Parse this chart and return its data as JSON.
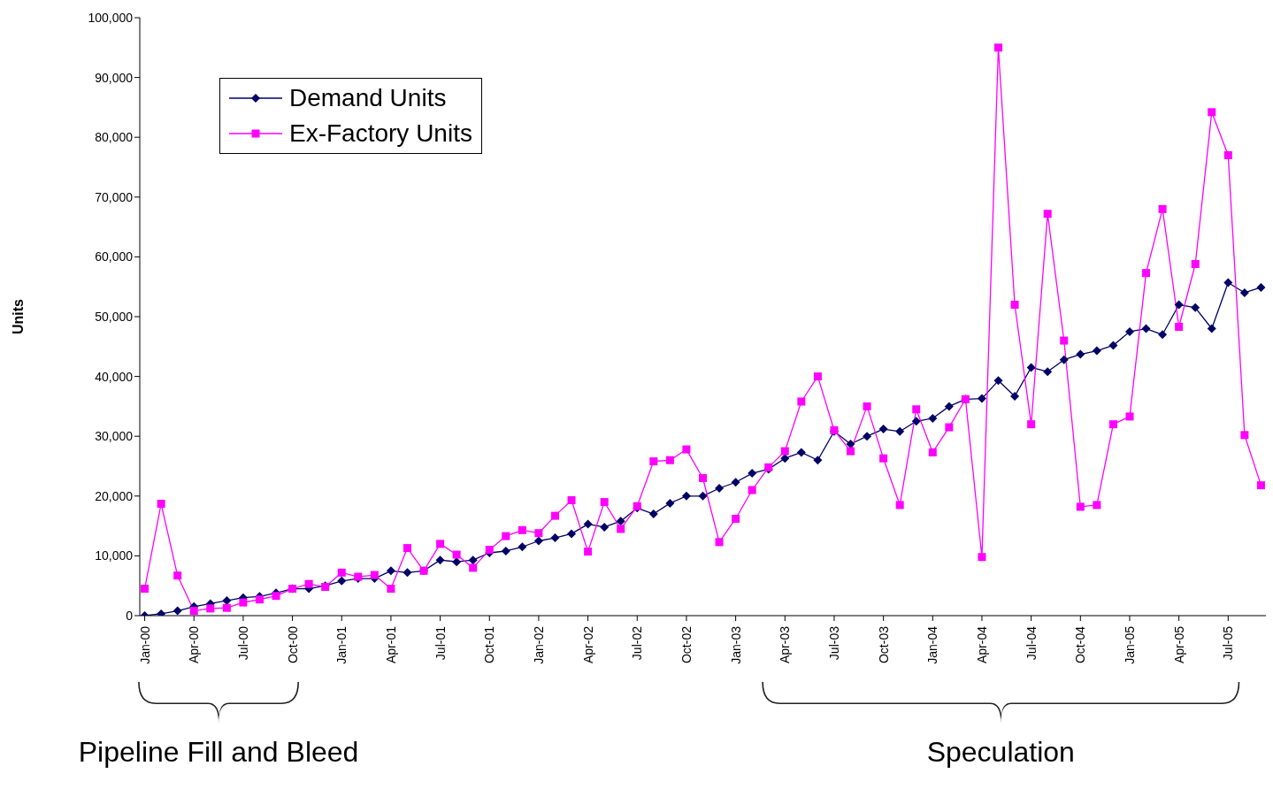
{
  "chart_data": {
    "type": "line",
    "ylabel": "Units",
    "categories": [
      "Jan-00",
      null,
      null,
      "Apr-00",
      null,
      null,
      "Jul-00",
      null,
      null,
      "Oct-00",
      null,
      null,
      "Jan-01",
      null,
      null,
      "Apr-01",
      null,
      null,
      "Jul-01",
      null,
      null,
      "Oct-01",
      null,
      null,
      "Jan-02",
      null,
      null,
      "Apr-02",
      null,
      null,
      "Jul-02",
      null,
      null,
      "Oct-02",
      null,
      null,
      "Jan-03",
      null,
      null,
      "Apr-03",
      null,
      null,
      "Jul-03",
      null,
      null,
      "Oct-03",
      null,
      null,
      "Jan-04",
      null,
      null,
      "Apr-04",
      null,
      null,
      "Jul-04",
      null,
      null,
      "Oct-04",
      null,
      null,
      "Jan-05",
      null,
      null,
      "Apr-05",
      null,
      null,
      "Jul-05",
      null,
      null
    ],
    "series": [
      {
        "name": "Demand Units",
        "color": "#000066",
        "marker": "diamond",
        "values": [
          0,
          300,
          800,
          1500,
          2000,
          2500,
          3000,
          3200,
          3800,
          4500,
          4500,
          5000,
          5800,
          6200,
          6200,
          7500,
          7200,
          7500,
          9300,
          9000,
          9300,
          10500,
          10800,
          11500,
          12500,
          13000,
          13700,
          15300,
          14800,
          15800,
          18000,
          17000,
          18800,
          20000,
          20000,
          21300,
          22300,
          23800,
          24500,
          26300,
          27300,
          26000,
          30800,
          28700,
          30000,
          31200,
          30800,
          32500,
          33000,
          35000,
          36200,
          36300,
          39300,
          36700,
          41500,
          40800,
          42800,
          43700,
          44300,
          45200,
          47500,
          48000,
          47000,
          52000,
          51500,
          48000,
          55700,
          54000,
          54900
        ]
      },
      {
        "name": "Ex-Factory Units",
        "color": "#ff00ff",
        "marker": "square",
        "values": [
          4500,
          18700,
          6700,
          800,
          1200,
          1300,
          2200,
          2700,
          3300,
          4500,
          5300,
          4800,
          7200,
          6500,
          6800,
          4500,
          11300,
          7500,
          12000,
          10200,
          8000,
          11000,
          13300,
          14300,
          13800,
          16700,
          19300,
          10700,
          19000,
          14500,
          18300,
          25800,
          26000,
          27800,
          23000,
          12300,
          16200,
          21000,
          24800,
          27500,
          35800,
          40000,
          31000,
          27500,
          35000,
          26300,
          18500,
          34500,
          27300,
          31500,
          36200,
          9800,
          95000,
          52000,
          32000,
          67200,
          46000,
          18200,
          18500,
          32000,
          33300,
          57300,
          68000,
          48300,
          58800,
          84200,
          77000,
          30200,
          21800
        ]
      }
    ],
    "ylim": [
      0,
      100000
    ],
    "yticks": [
      {
        "value": 0,
        "label": "0"
      },
      {
        "value": 10000,
        "label": "10,000"
      },
      {
        "value": 20000,
        "label": "20,000"
      },
      {
        "value": 30000,
        "label": "30,000"
      },
      {
        "value": 40000,
        "label": "40,000"
      },
      {
        "value": 50000,
        "label": "50,000"
      },
      {
        "value": 60000,
        "label": "60,000"
      },
      {
        "value": 70000,
        "label": "70,000"
      },
      {
        "value": 80000,
        "label": "80,000"
      },
      {
        "value": 90000,
        "label": "90,000"
      },
      {
        "value": 100000,
        "label": "100,000"
      }
    ],
    "grid": false,
    "legend": "top left",
    "line_style": "solid",
    "annotations": [
      "Pipeline Fill and Bleed",
      "Speculation"
    ]
  }
}
